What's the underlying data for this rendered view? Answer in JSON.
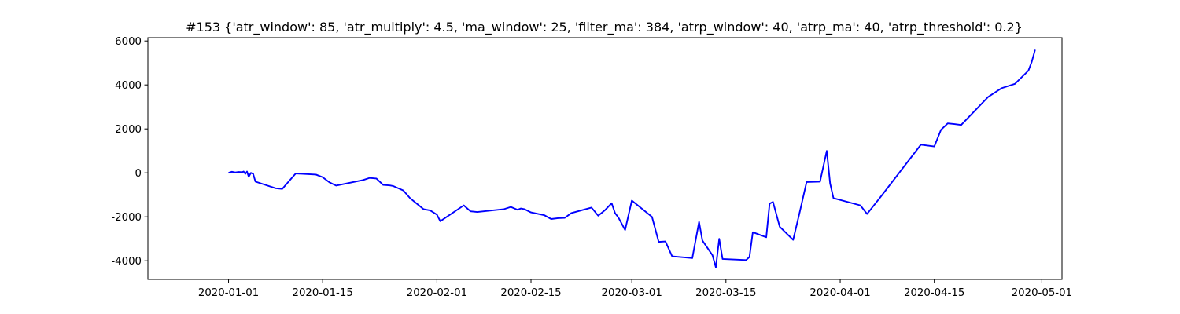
{
  "chart_data": {
    "type": "line",
    "title": "#153 {'atr_window': 85, 'atr_multiply': 4.5, 'ma_window': 25, 'filter_ma': 384, 'atrp_window': 40, 'atrp_ma': 40, 'atrp_threshold': 0.2}",
    "xlabel": "",
    "ylabel": "",
    "x_type": "date",
    "xlim": [
      "2019-12-20",
      "2020-05-04"
    ],
    "ylim": [
      -4850,
      6150
    ],
    "grid": false,
    "x_ticks": [
      "2020-01-01",
      "2020-01-15",
      "2020-02-01",
      "2020-02-15",
      "2020-03-01",
      "2020-03-15",
      "2020-04-01",
      "2020-04-15",
      "2020-05-01"
    ],
    "y_ticks": [
      -4000,
      -2000,
      0,
      2000,
      4000,
      6000
    ],
    "series": [
      {
        "color": "#0000ff",
        "x": [
          "2020-01-01",
          "2020-01-01",
          "2020-01-02",
          "2020-01-02",
          "2020-01-03",
          "2020-01-03",
          "2020-01-03",
          "2020-01-03",
          "2020-01-04",
          "2020-01-04",
          "2020-01-04",
          "2020-01-05",
          "2020-01-07",
          "2020-01-08",
          "2020-01-09",
          "2020-01-09",
          "2020-01-11",
          "2020-01-14",
          "2020-01-15",
          "2020-01-16",
          "2020-01-17",
          "2020-01-21",
          "2020-01-22",
          "2020-01-23",
          "2020-01-24",
          "2020-01-25",
          "2020-01-25",
          "2020-01-27",
          "2020-01-28",
          "2020-01-29",
          "2020-01-30",
          "2020-01-31",
          "2020-02-01",
          "2020-02-01",
          "2020-02-05",
          "2020-02-06",
          "2020-02-07",
          "2020-02-11",
          "2020-02-12",
          "2020-02-13",
          "2020-02-13",
          "2020-02-14",
          "2020-02-15",
          "2020-02-17",
          "2020-02-18",
          "2020-02-19",
          "2020-02-20",
          "2020-02-21",
          "2020-02-24",
          "2020-02-25",
          "2020-02-26",
          "2020-02-27",
          "2020-02-27",
          "2020-02-28",
          "2020-02-29",
          "2020-03-01",
          "2020-03-04",
          "2020-03-05",
          "2020-03-06",
          "2020-03-07",
          "2020-03-10",
          "2020-03-11",
          "2020-03-11",
          "2020-03-13",
          "2020-03-13",
          "2020-03-14",
          "2020-03-14",
          "2020-03-18",
          "2020-03-18",
          "2020-03-19",
          "2020-03-21",
          "2020-03-21",
          "2020-03-22",
          "2020-03-23",
          "2020-03-25",
          "2020-03-26",
          "2020-03-27",
          "2020-03-29",
          "2020-03-30",
          "2020-03-30",
          "2020-03-31",
          "2020-04-04",
          "2020-04-05",
          "2020-04-07",
          "2020-04-13",
          "2020-04-15",
          "2020-04-16",
          "2020-04-17",
          "2020-04-18",
          "2020-04-19",
          "2020-04-23",
          "2020-04-25",
          "2020-04-26",
          "2020-04-27",
          "2020-04-29",
          "2020-04-29",
          "2020-04-30"
        ],
        "y": [
          0,
          50,
          20,
          40,
          30,
          60,
          -50,
          60,
          -180,
          0,
          -50,
          -400,
          -600,
          -700,
          -730,
          -550,
          -30,
          -80,
          -200,
          -430,
          -580,
          -330,
          -230,
          -260,
          -550,
          -570,
          -600,
          -800,
          -1150,
          -1400,
          -1650,
          -1710,
          -1900,
          -2200,
          -1480,
          -1750,
          -1780,
          -1650,
          -1550,
          -1680,
          -1620,
          -1650,
          -1800,
          -1930,
          -2100,
          -2060,
          -2050,
          -1830,
          -1580,
          -1950,
          -1700,
          -1380,
          -1830,
          -2030,
          -2600,
          -1260,
          -2000,
          -3140,
          -3120,
          -3800,
          -3880,
          -2230,
          -3080,
          -3750,
          -4300,
          -3000,
          -3920,
          -3970,
          -3830,
          -2700,
          -2930,
          -1400,
          -1320,
          -2450,
          -3050,
          -1760,
          -420,
          -400,
          1000,
          -480,
          -1150,
          -1480,
          -1870,
          -1100,
          1280,
          1200,
          1960,
          2250,
          2220,
          2180,
          3450,
          3850,
          3950,
          4050,
          4650,
          5050,
          5600
        ]
      }
    ]
  }
}
